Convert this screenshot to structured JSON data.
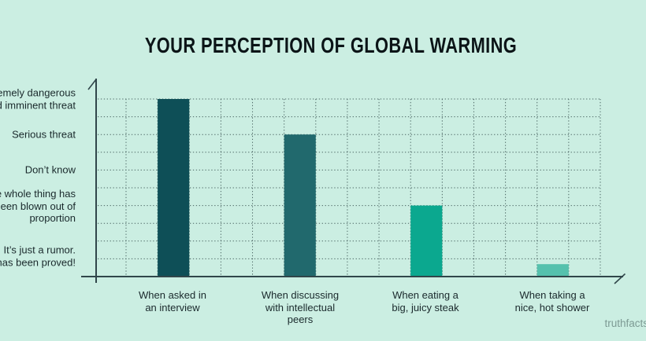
{
  "title": "YOUR PERCEPTION OF GLOBAL WARMING",
  "watermark": "truthfacts",
  "colors": {
    "background": "#cbeee2",
    "title_text": "#0b1417",
    "label_text": "#1a292c",
    "axis": "#30464a",
    "grid_dots": "#4a6462",
    "watermark_text": "#7d9a94",
    "bars": [
      "#0e4f57",
      "#21696d",
      "#0ba88f",
      "#55c1ad"
    ]
  },
  "chart_data": {
    "type": "bar",
    "title": "YOUR PERCEPTION OF GLOBAL WARMING",
    "categories": [
      "When asked in an interview",
      "When discussing with intellectual peers",
      "When eating a big, juicy steak",
      "When taking a nice, hot shower"
    ],
    "values": [
      10,
      8,
      4,
      0.7
    ],
    "ylim": [
      0,
      10
    ],
    "xlabel": "",
    "ylabel": "",
    "grid": "dotted",
    "legend": "none",
    "y_tick_labels": [
      {
        "level": 10,
        "lines": [
          "remely dangerous",
          "d imminent threat"
        ]
      },
      {
        "level": 8,
        "lines": [
          "Serious threat"
        ]
      },
      {
        "level": 6,
        "lines": [
          "Don’t know"
        ]
      },
      {
        "level": 4,
        "lines": [
          "e whole thing has",
          "een blown out of",
          "proportion"
        ]
      },
      {
        "level": 1,
        "lines": [
          "It’s just a rumor.",
          "has been proved!"
        ]
      }
    ],
    "x_tick_labels": [
      {
        "lines": [
          "When asked in",
          "an interview"
        ]
      },
      {
        "lines": [
          "When discussing",
          "with intellectual",
          "peers"
        ]
      },
      {
        "lines": [
          "When eating a",
          "big, juicy steak"
        ]
      },
      {
        "lines": [
          "When taking a",
          "nice, hot shower"
        ]
      }
    ]
  }
}
